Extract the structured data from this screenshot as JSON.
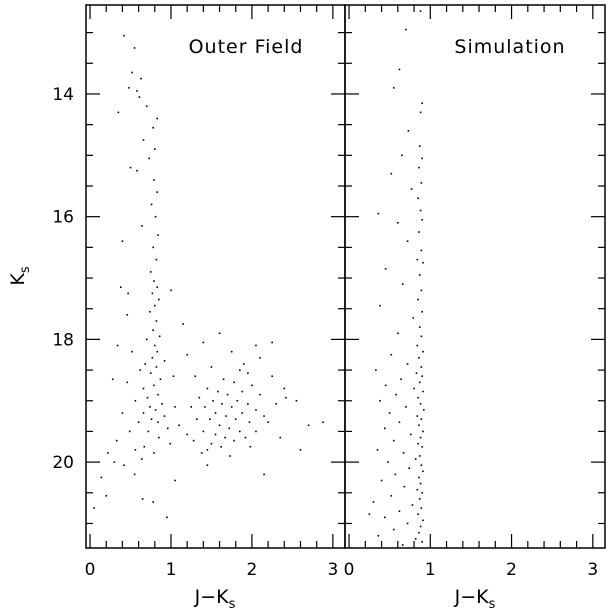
{
  "chart_data": [
    {
      "type": "scatter",
      "panel": "left",
      "title": "Outer Field",
      "xlabel": "J−K",
      "xlabel_sub": "s",
      "ylabel": "K",
      "ylabel_sub": "s",
      "xlim": [
        -0.05,
        3.15
      ],
      "ylim": [
        21.4,
        12.55
      ],
      "y_inverted": true,
      "x_ticks": [
        0,
        1,
        2,
        3
      ],
      "x_tick_labels": [
        "0",
        "1",
        "2",
        "3"
      ],
      "y_ticks": [
        14,
        16,
        18,
        20
      ],
      "y_tick_labels": [
        "14",
        "16",
        "18",
        "20"
      ],
      "grid": false,
      "marker_color": "#000000",
      "points": [
        [
          0.42,
          13.05
        ],
        [
          0.55,
          13.25
        ],
        [
          0.52,
          13.65
        ],
        [
          0.63,
          13.75
        ],
        [
          0.48,
          13.9
        ],
        [
          0.58,
          13.95
        ],
        [
          0.61,
          14.05
        ],
        [
          0.7,
          14.2
        ],
        [
          0.35,
          14.3
        ],
        [
          0.83,
          14.4
        ],
        [
          0.78,
          14.55
        ],
        [
          0.66,
          14.75
        ],
        [
          0.8,
          14.9
        ],
        [
          0.73,
          15.05
        ],
        [
          0.5,
          15.2
        ],
        [
          0.58,
          15.25
        ],
        [
          0.79,
          15.4
        ],
        [
          0.83,
          15.6
        ],
        [
          0.76,
          15.8
        ],
        [
          0.81,
          16.0
        ],
        [
          0.64,
          16.15
        ],
        [
          0.84,
          16.3
        ],
        [
          0.4,
          16.4
        ],
        [
          0.78,
          16.5
        ],
        [
          0.82,
          16.7
        ],
        [
          0.75,
          16.9
        ],
        [
          0.79,
          17.05
        ],
        [
          0.83,
          17.15
        ],
        [
          0.77,
          17.25
        ],
        [
          0.38,
          17.15
        ],
        [
          0.47,
          17.25
        ],
        [
          0.85,
          17.35
        ],
        [
          1.0,
          17.2
        ],
        [
          0.8,
          17.45
        ],
        [
          0.74,
          17.55
        ],
        [
          0.46,
          17.6
        ],
        [
          0.82,
          17.7
        ],
        [
          1.15,
          17.75
        ],
        [
          0.78,
          17.85
        ],
        [
          0.86,
          17.95
        ],
        [
          0.7,
          18.0
        ],
        [
          0.8,
          18.1
        ],
        [
          0.34,
          18.1
        ],
        [
          0.83,
          18.2
        ],
        [
          0.52,
          18.2
        ],
        [
          0.77,
          18.3
        ],
        [
          1.2,
          18.25
        ],
        [
          0.92,
          18.35
        ],
        [
          0.68,
          18.4
        ],
        [
          0.82,
          18.45
        ],
        [
          0.62,
          18.5
        ],
        [
          0.75,
          18.55
        ],
        [
          1.03,
          18.6
        ],
        [
          0.87,
          18.65
        ],
        [
          0.28,
          18.65
        ],
        [
          0.46,
          18.7
        ],
        [
          0.79,
          18.75
        ],
        [
          0.66,
          18.8
        ],
        [
          0.84,
          18.9
        ],
        [
          0.71,
          18.95
        ],
        [
          0.56,
          19.0
        ],
        [
          0.89,
          19.05
        ],
        [
          0.74,
          19.1
        ],
        [
          1.05,
          19.1
        ],
        [
          0.81,
          19.15
        ],
        [
          0.66,
          19.2
        ],
        [
          0.92,
          19.25
        ],
        [
          0.4,
          19.2
        ],
        [
          0.76,
          19.3
        ],
        [
          0.84,
          19.35
        ],
        [
          0.6,
          19.35
        ],
        [
          1.1,
          19.4
        ],
        [
          0.96,
          19.45
        ],
        [
          0.72,
          19.5
        ],
        [
          0.49,
          19.5
        ],
        [
          1.2,
          19.55
        ],
        [
          0.85,
          19.6
        ],
        [
          0.33,
          19.65
        ],
        [
          0.99,
          19.7
        ],
        [
          0.67,
          19.75
        ],
        [
          0.56,
          19.8
        ],
        [
          0.79,
          19.85
        ],
        [
          0.22,
          19.85
        ],
        [
          0.64,
          19.95
        ],
        [
          0.42,
          20.05
        ],
        [
          0.3,
          20.0
        ],
        [
          0.55,
          20.2
        ],
        [
          0.14,
          20.25
        ],
        [
          0.2,
          20.55
        ],
        [
          0.65,
          20.6
        ],
        [
          0.78,
          20.65
        ],
        [
          0.05,
          20.75
        ],
        [
          0.95,
          20.9
        ],
        [
          1.05,
          20.3
        ],
        [
          1.45,
          20.05
        ],
        [
          2.15,
          20.2
        ],
        [
          2.6,
          19.8
        ],
        [
          1.4,
          18.05
        ],
        [
          1.6,
          17.9
        ],
        [
          2.05,
          18.1
        ],
        [
          1.75,
          18.2
        ],
        [
          2.1,
          18.3
        ],
        [
          1.5,
          18.45
        ],
        [
          1.85,
          18.5
        ],
        [
          1.95,
          18.55
        ],
        [
          1.3,
          18.6
        ],
        [
          2.25,
          18.6
        ],
        [
          1.65,
          18.65
        ],
        [
          1.78,
          18.7
        ],
        [
          2.0,
          18.75
        ],
        [
          1.45,
          18.8
        ],
        [
          1.58,
          18.85
        ],
        [
          1.88,
          18.85
        ],
        [
          2.4,
          18.8
        ],
        [
          1.7,
          18.9
        ],
        [
          2.1,
          18.9
        ],
        [
          1.35,
          18.95
        ],
        [
          1.52,
          19.0
        ],
        [
          1.82,
          19.0
        ],
        [
          1.95,
          19.05
        ],
        [
          1.63,
          19.05
        ],
        [
          2.3,
          19.05
        ],
        [
          1.25,
          19.1
        ],
        [
          1.42,
          19.1
        ],
        [
          1.75,
          19.1
        ],
        [
          2.05,
          19.15
        ],
        [
          1.55,
          19.2
        ],
        [
          1.88,
          19.2
        ],
        [
          1.68,
          19.25
        ],
        [
          2.15,
          19.25
        ],
        [
          1.32,
          19.3
        ],
        [
          1.48,
          19.3
        ],
        [
          1.8,
          19.3
        ],
        [
          1.97,
          19.35
        ],
        [
          1.6,
          19.4
        ],
        [
          2.2,
          19.35
        ],
        [
          1.72,
          19.45
        ],
        [
          1.4,
          19.5
        ],
        [
          1.85,
          19.5
        ],
        [
          2.05,
          19.5
        ],
        [
          1.55,
          19.55
        ],
        [
          1.67,
          19.6
        ],
        [
          1.92,
          19.6
        ],
        [
          1.28,
          19.65
        ],
        [
          1.78,
          19.65
        ],
        [
          2.35,
          19.6
        ],
        [
          1.5,
          19.7
        ],
        [
          1.62,
          19.75
        ],
        [
          1.98,
          19.75
        ],
        [
          1.45,
          19.8
        ],
        [
          2.88,
          19.35
        ],
        [
          2.55,
          19.0
        ],
        [
          2.7,
          19.4
        ],
        [
          2.42,
          18.95
        ],
        [
          2.25,
          18.05
        ],
        [
          1.38,
          19.85
        ],
        [
          1.73,
          19.9
        ],
        [
          1.9,
          18.4
        ]
      ]
    },
    {
      "type": "scatter",
      "panel": "right",
      "title": "Simulation",
      "xlabel": "J−K",
      "xlabel_sub": "s",
      "xlim": [
        -0.05,
        3.15
      ],
      "ylim": [
        21.4,
        12.55
      ],
      "y_inverted": true,
      "x_ticks": [
        0,
        1,
        2,
        3
      ],
      "x_tick_labels": [
        "0",
        "1",
        "2",
        "3"
      ],
      "y_ticks": [
        14,
        16,
        18,
        20
      ],
      "grid": false,
      "marker_color": "#000000",
      "points": [
        [
          0.7,
          12.95
        ],
        [
          0.88,
          12.65
        ],
        [
          0.62,
          13.6
        ],
        [
          0.55,
          13.9
        ],
        [
          0.9,
          14.15
        ],
        [
          0.88,
          14.3
        ],
        [
          0.73,
          14.6
        ],
        [
          0.65,
          15.0
        ],
        [
          0.87,
          14.85
        ],
        [
          0.9,
          15.05
        ],
        [
          0.86,
          15.2
        ],
        [
          0.52,
          15.3
        ],
        [
          0.89,
          15.45
        ],
        [
          0.77,
          15.55
        ],
        [
          0.85,
          15.7
        ],
        [
          0.88,
          15.9
        ],
        [
          0.36,
          15.95
        ],
        [
          0.6,
          16.1
        ],
        [
          0.9,
          16.05
        ],
        [
          0.86,
          16.25
        ],
        [
          0.72,
          16.4
        ],
        [
          0.89,
          16.55
        ],
        [
          0.84,
          16.7
        ],
        [
          0.91,
          16.75
        ],
        [
          0.45,
          16.85
        ],
        [
          0.87,
          16.95
        ],
        [
          0.66,
          17.1
        ],
        [
          0.89,
          17.2
        ],
        [
          0.85,
          17.35
        ],
        [
          0.38,
          17.45
        ],
        [
          0.9,
          17.55
        ],
        [
          0.79,
          17.65
        ],
        [
          0.87,
          17.8
        ],
        [
          0.6,
          17.9
        ],
        [
          0.89,
          17.95
        ],
        [
          0.84,
          18.1
        ],
        [
          0.91,
          18.2
        ],
        [
          0.52,
          18.25
        ],
        [
          0.86,
          18.3
        ],
        [
          0.72,
          18.4
        ],
        [
          0.89,
          18.45
        ],
        [
          0.33,
          18.5
        ],
        [
          0.83,
          18.55
        ],
        [
          0.9,
          18.6
        ],
        [
          0.64,
          18.65
        ],
        [
          0.87,
          18.7
        ],
        [
          0.45,
          18.75
        ],
        [
          0.8,
          18.8
        ],
        [
          0.91,
          18.85
        ],
        [
          0.58,
          18.9
        ],
        [
          0.85,
          18.95
        ],
        [
          0.38,
          19.0
        ],
        [
          0.88,
          19.05
        ],
        [
          0.7,
          19.1
        ],
        [
          0.92,
          19.15
        ],
        [
          0.5,
          19.2
        ],
        [
          0.84,
          19.25
        ],
        [
          0.89,
          19.3
        ],
        [
          0.62,
          19.35
        ],
        [
          0.86,
          19.4
        ],
        [
          0.44,
          19.45
        ],
        [
          0.91,
          19.5
        ],
        [
          0.76,
          19.55
        ],
        [
          0.88,
          19.6
        ],
        [
          0.55,
          19.65
        ],
        [
          0.85,
          19.7
        ],
        [
          0.9,
          19.75
        ],
        [
          0.35,
          19.8
        ],
        [
          0.67,
          19.85
        ],
        [
          0.87,
          19.9
        ],
        [
          0.82,
          19.95
        ],
        [
          0.48,
          20.0
        ],
        [
          0.89,
          20.05
        ],
        [
          0.74,
          20.1
        ],
        [
          0.91,
          20.15
        ],
        [
          0.57,
          20.2
        ],
        [
          0.86,
          20.25
        ],
        [
          0.4,
          20.3
        ],
        [
          0.88,
          20.35
        ],
        [
          0.68,
          20.4
        ],
        [
          0.84,
          20.45
        ],
        [
          0.9,
          20.5
        ],
        [
          0.52,
          20.55
        ],
        [
          0.87,
          20.6
        ],
        [
          0.3,
          20.65
        ],
        [
          0.78,
          20.7
        ],
        [
          0.89,
          20.75
        ],
        [
          0.62,
          20.8
        ],
        [
          0.85,
          20.85
        ],
        [
          0.44,
          20.9
        ],
        [
          0.91,
          20.95
        ],
        [
          0.72,
          21.0
        ],
        [
          0.88,
          21.05
        ],
        [
          0.55,
          21.1
        ],
        [
          0.86,
          21.15
        ],
        [
          0.36,
          21.2
        ],
        [
          0.82,
          21.25
        ],
        [
          0.9,
          21.3
        ],
        [
          0.66,
          21.35
        ],
        [
          0.25,
          20.85
        ]
      ]
    }
  ]
}
